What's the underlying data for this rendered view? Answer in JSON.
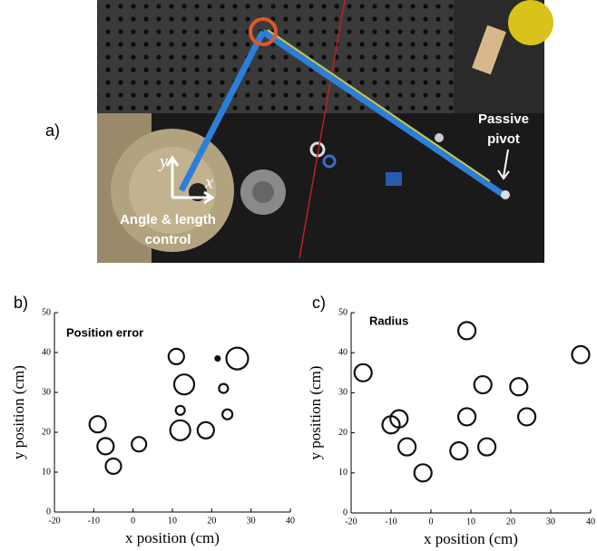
{
  "figure": {
    "panel_label": "a)",
    "pivot_text_1": "Passive",
    "pivot_text_2": "pivot",
    "control_text_1": "Angle & length",
    "control_text_2": "control",
    "axis_y": "y",
    "axis_x": "x"
  },
  "chart_data": [
    {
      "type": "bubble",
      "panel_label": "b)",
      "title": "Position error",
      "x_label": "x position (cm)",
      "y_label": "y position (cm)",
      "x": [
        -9,
        -7,
        -5,
        1.5,
        11,
        13,
        12,
        12,
        18.5,
        21.5,
        23,
        24,
        26.5
      ],
      "y": [
        22,
        16.5,
        11.5,
        17,
        39,
        32,
        25.5,
        20.5,
        20.5,
        38.5,
        31,
        24.5,
        38.5
      ],
      "sizes": [
        9,
        9,
        8.5,
        8,
        8.5,
        11,
        5,
        11,
        9,
        2.5,
        5,
        5.5,
        12
      ],
      "color": "#111111",
      "xlim": [
        -20,
        40
      ],
      "ylim": [
        0,
        50
      ],
      "xticks": [
        -20,
        -10,
        0,
        10,
        20,
        30,
        40
      ],
      "yticks": [
        0,
        10,
        20,
        30,
        40,
        50
      ]
    },
    {
      "type": "bubble",
      "panel_label": "c)",
      "title": "Radius",
      "x_label": "x position (cm)",
      "y_label": "y position (cm)",
      "x": [
        -17,
        -10,
        -8,
        -6,
        -2,
        7,
        9,
        9,
        13,
        14,
        22,
        24,
        37.5
      ],
      "y": [
        35,
        22,
        23.5,
        16.5,
        10,
        15.5,
        45.5,
        24,
        32,
        16.5,
        31.5,
        24,
        39.5
      ],
      "sizes": [
        9.5,
        9.5,
        9.5,
        9.5,
        9.5,
        9.5,
        9.5,
        9.5,
        9.5,
        9.5,
        9.5,
        9.5,
        9.5
      ],
      "color": "#111111",
      "xlim": [
        -20,
        40
      ],
      "ylim": [
        0,
        50
      ],
      "xticks": [
        -20,
        -10,
        0,
        10,
        20,
        30,
        40
      ],
      "yticks": [
        0,
        10,
        20,
        30,
        40,
        50
      ]
    }
  ]
}
